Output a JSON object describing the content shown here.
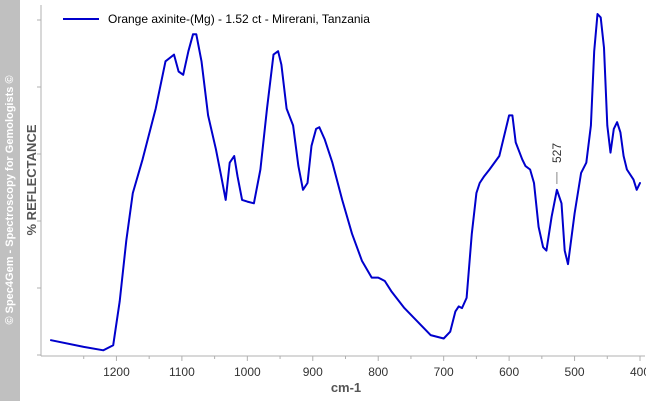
{
  "watermark": "© Spec4Gem - Spectroscopy for Gemologists ©",
  "chart_data": {
    "type": "line",
    "xlabel": "cm-1",
    "ylabel": "% REFLECTANCE",
    "xlim": [
      1300,
      400
    ],
    "x_reversed": true,
    "x_ticks": [
      1200,
      1100,
      1000,
      900,
      800,
      700,
      600,
      500,
      400
    ],
    "ylim": [
      0,
      1
    ],
    "y_tick_labels_shown": false,
    "grid": false,
    "legend_position": "top-left",
    "series": [
      {
        "name": "Orange axinite-(Mg) - 1.52 ct - Mirerani, Tanzania",
        "color": "#0000cc",
        "x": [
          1300,
          1250,
          1220,
          1205,
          1195,
          1185,
          1175,
          1160,
          1140,
          1125,
          1112,
          1105,
          1098,
          1090,
          1083,
          1078,
          1070,
          1060,
          1048,
          1040,
          1033,
          1027,
          1020,
          1015,
          1008,
          1000,
          990,
          980,
          970,
          960,
          953,
          948,
          940,
          930,
          922,
          915,
          908,
          902,
          895,
          890,
          882,
          870,
          855,
          840,
          825,
          810,
          800,
          790,
          780,
          760,
          740,
          720,
          700,
          690,
          682,
          677,
          672,
          665,
          657,
          650,
          645,
          638,
          630,
          615,
          600,
          595,
          590,
          580,
          575,
          568,
          562,
          555,
          548,
          543,
          535,
          527,
          520,
          515,
          510,
          500,
          490,
          482,
          475,
          470,
          465,
          460,
          455,
          450,
          445,
          440,
          435,
          430,
          425,
          420,
          410,
          405,
          400
        ],
        "y": [
          0.035,
          0.015,
          0.005,
          0.02,
          0.15,
          0.33,
          0.47,
          0.57,
          0.72,
          0.86,
          0.88,
          0.83,
          0.82,
          0.89,
          0.94,
          0.94,
          0.86,
          0.7,
          0.6,
          0.52,
          0.45,
          0.56,
          0.58,
          0.52,
          0.45,
          0.445,
          0.44,
          0.54,
          0.72,
          0.88,
          0.89,
          0.85,
          0.72,
          0.67,
          0.55,
          0.48,
          0.5,
          0.61,
          0.66,
          0.665,
          0.63,
          0.56,
          0.45,
          0.35,
          0.27,
          0.22,
          0.22,
          0.21,
          0.18,
          0.13,
          0.09,
          0.05,
          0.04,
          0.06,
          0.12,
          0.135,
          0.13,
          0.16,
          0.35,
          0.47,
          0.5,
          0.52,
          0.54,
          0.58,
          0.7,
          0.7,
          0.62,
          0.57,
          0.55,
          0.54,
          0.5,
          0.37,
          0.31,
          0.3,
          0.4,
          0.48,
          0.44,
          0.3,
          0.26,
          0.41,
          0.53,
          0.56,
          0.67,
          0.89,
          1.0,
          0.99,
          0.9,
          0.67,
          0.59,
          0.66,
          0.68,
          0.65,
          0.58,
          0.54,
          0.51,
          0.48,
          0.5
        ]
      }
    ],
    "annotations": [
      {
        "text": "527",
        "x": 527
      }
    ]
  }
}
